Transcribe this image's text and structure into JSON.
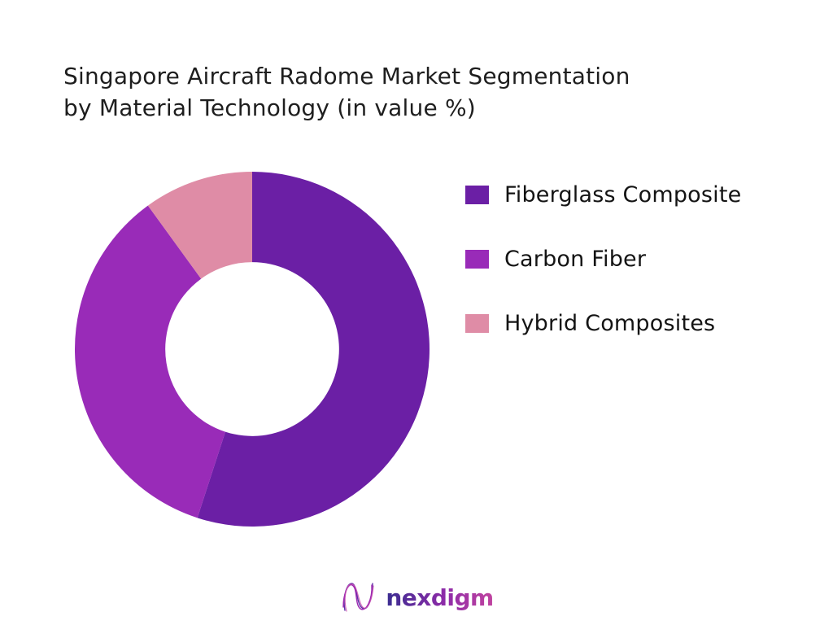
{
  "title": {
    "line1": "Singapore Aircraft Radome Market Segmentation",
    "line2": "by Material Technology (in value %)"
  },
  "chart_data": {
    "type": "pie",
    "subtype": "donut",
    "title": "Singapore Aircraft Radome Market Segmentation by Material Technology (in value %)",
    "unit": "value %",
    "labels": [
      "Fiberglass Composite",
      "Carbon Fiber",
      "Hybrid Composites"
    ],
    "values": [
      55,
      35,
      10
    ],
    "colors": [
      "#6b1fa5",
      "#992bb8",
      "#df8ca6"
    ],
    "start_angle_deg": 0,
    "direction": "clockwise",
    "inner_radius_ratio": 0.49,
    "legend_position": "right",
    "data_labels": false,
    "hole_color": "#ffffff"
  },
  "legend": {
    "items": [
      {
        "label": "Fiberglass Composite",
        "color": "#6b1fa5"
      },
      {
        "label": "Carbon Fiber",
        "color": "#992bb8"
      },
      {
        "label": "Hybrid Composites",
        "color": "#df8ca6"
      }
    ]
  },
  "logo": {
    "text": "nexdigm",
    "icon": "nexdigm-n-waves-icon",
    "icon_colors": [
      "#5b2fa8",
      "#9c27b0",
      "#c94fb0"
    ],
    "text_gradient": [
      "#3a2d91",
      "#8e2ba8",
      "#c1439f"
    ]
  }
}
